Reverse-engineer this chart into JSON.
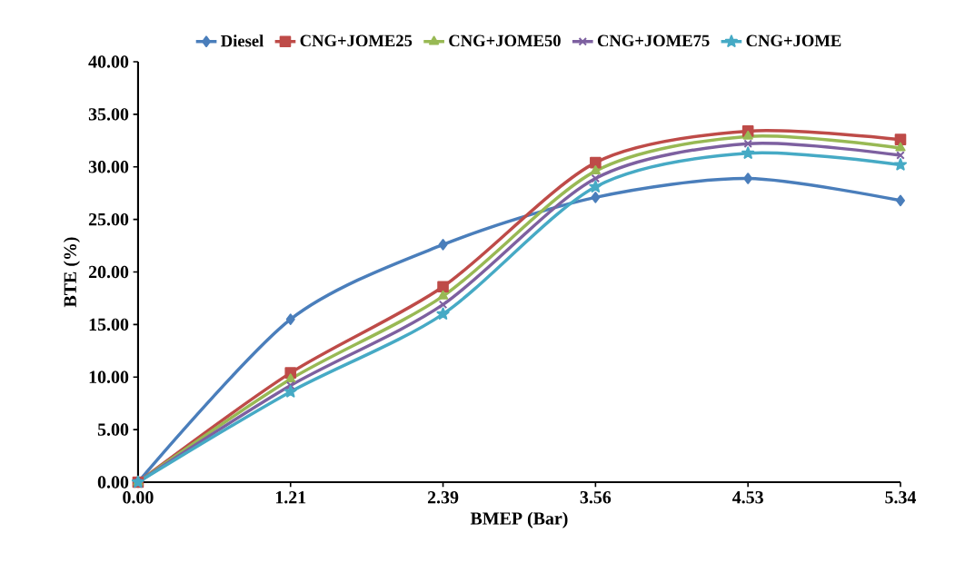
{
  "chart_data": {
    "type": "line",
    "xlabel": "BMEP (Bar)",
    "ylabel": "BTE (%)",
    "categories": [
      "0.00",
      "1.21",
      "2.39",
      "3.56",
      "4.53",
      "5.34"
    ],
    "series": [
      {
        "name": "Diesel",
        "color": "#4a7ebb",
        "marker": "diamond",
        "values": [
          0,
          15.5,
          22.6,
          27.1,
          28.9,
          26.8
        ]
      },
      {
        "name": "CNG+JOME25",
        "color": "#be4b48",
        "marker": "square",
        "values": [
          0,
          10.4,
          18.6,
          30.4,
          33.4,
          32.6
        ]
      },
      {
        "name": "CNG+JOME50",
        "color": "#98b954",
        "marker": "triangle",
        "values": [
          0,
          9.8,
          17.7,
          29.6,
          32.9,
          31.8
        ]
      },
      {
        "name": "CNG+JOME75",
        "color": "#7d60a0",
        "marker": "cross",
        "values": [
          0,
          9.2,
          16.9,
          28.9,
          32.2,
          31.1
        ]
      },
      {
        "name": "CNG+JOME",
        "color": "#46aac5",
        "marker": "star",
        "values": [
          0,
          8.6,
          16.0,
          28.1,
          31.3,
          30.2
        ]
      }
    ],
    "ylim": [
      0,
      40
    ],
    "yticks": [
      {
        "value": 0,
        "label": "0.00"
      },
      {
        "value": 5,
        "label": "5.00"
      },
      {
        "value": 10,
        "label": "10.00"
      },
      {
        "value": 15,
        "label": "15.00"
      },
      {
        "value": 20,
        "label": "20.00"
      },
      {
        "value": 25,
        "label": "25.00"
      },
      {
        "value": 30,
        "label": "30.00"
      },
      {
        "value": 35,
        "label": "35.00"
      },
      {
        "value": 40,
        "label": "40.00"
      }
    ],
    "grid": false,
    "legend": "top",
    "line_style": "solid"
  }
}
